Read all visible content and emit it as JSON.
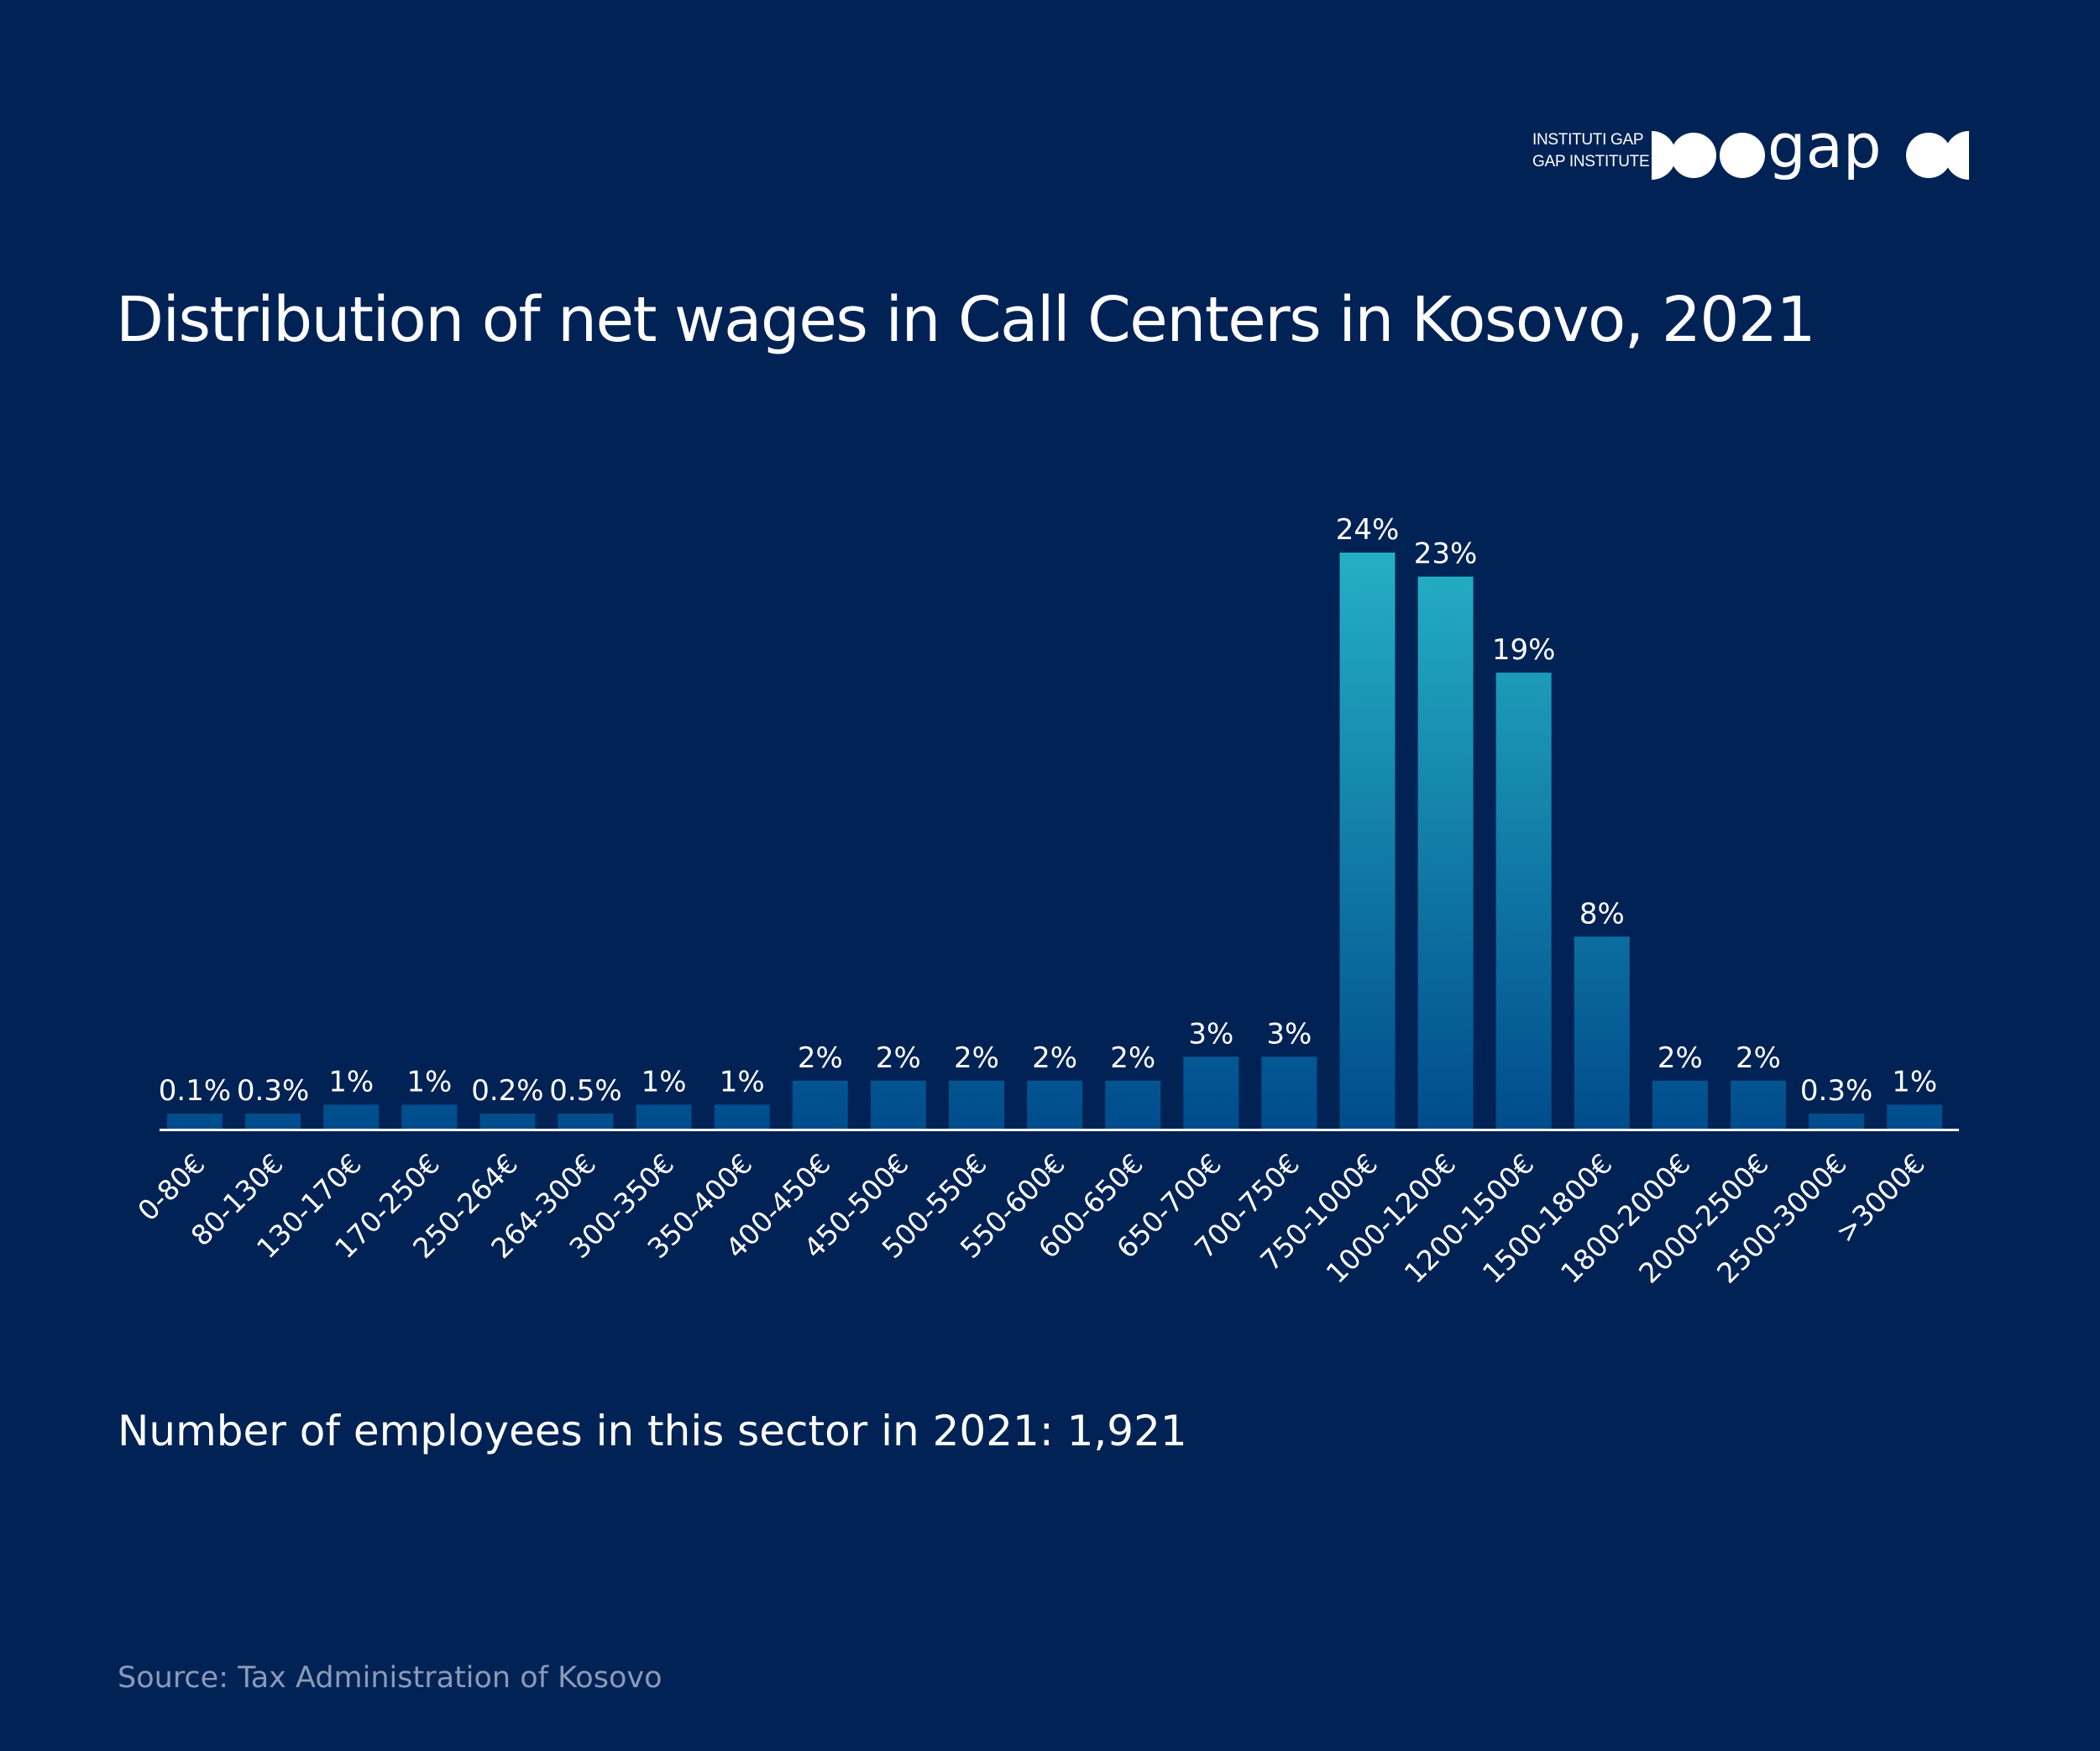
{
  "brand": {
    "line1": "INSTITUTI GAP",
    "line2": "GAP INSTITUTE",
    "wordmark": "gap"
  },
  "colors": {
    "background": "#002255",
    "bar_low": "#004c8c",
    "bar_high": "#24b0c4",
    "axis": "#ffffff",
    "source_text": "#8a9ab8"
  },
  "chart_data": {
    "type": "bar",
    "title": "Distribution of net wages in Call Centers in Kosovo, 2021",
    "xlabel": "",
    "ylabel": "",
    "grid": false,
    "categories": [
      "0-80€",
      "80-130€",
      "130-170€",
      "170-250€",
      "250-264€",
      "264-300€",
      "300-350€",
      "350-400€",
      "400-450€",
      "450-500€",
      "500-550€",
      "550-600€",
      "600-650€",
      "650-700€",
      "700-750€",
      "750-1000€",
      "1000-1200€",
      "1200-1500€",
      "1500-1800€",
      "1800-2000€",
      "2000-2500€",
      "2500-3000€",
      ">3000€"
    ],
    "values": [
      0.1,
      0.3,
      1,
      1,
      0.2,
      0.5,
      1,
      1,
      2,
      2,
      2,
      2,
      2,
      3,
      3,
      24,
      23,
      19,
      8,
      2,
      2,
      0.3,
      1
    ],
    "labels": [
      "0.1%",
      "0.3%",
      "1%",
      "1%",
      "0.2%",
      "0.5%",
      "1%",
      "1%",
      "2%",
      "2%",
      "2%",
      "2%",
      "2%",
      "3%",
      "3%",
      "24%",
      "23%",
      "19%",
      "8%",
      "2%",
      "2%",
      "0.3%",
      "1%"
    ],
    "unit": "%",
    "ylim": [
      0,
      24
    ]
  },
  "note": "Number of employees in this sector in 2021: 1,921",
  "source": "Source: Tax Administration of Kosovo"
}
